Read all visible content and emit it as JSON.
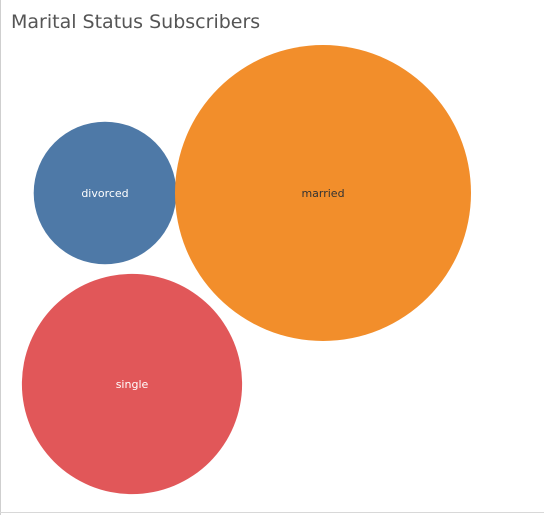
{
  "chart_data": {
    "type": "bubble",
    "title": "Marital Status Subscribers",
    "categories": [
      "divorced",
      "married",
      "single"
    ],
    "colors": {
      "divorced": "#4e79a7",
      "married": "#f28e2b",
      "single": "#e15759"
    },
    "label_colors": {
      "divorced": "#ffffff",
      "married": "#333333",
      "single": "#ffffff"
    },
    "values": [
      528,
      2273,
      1257
    ]
  }
}
